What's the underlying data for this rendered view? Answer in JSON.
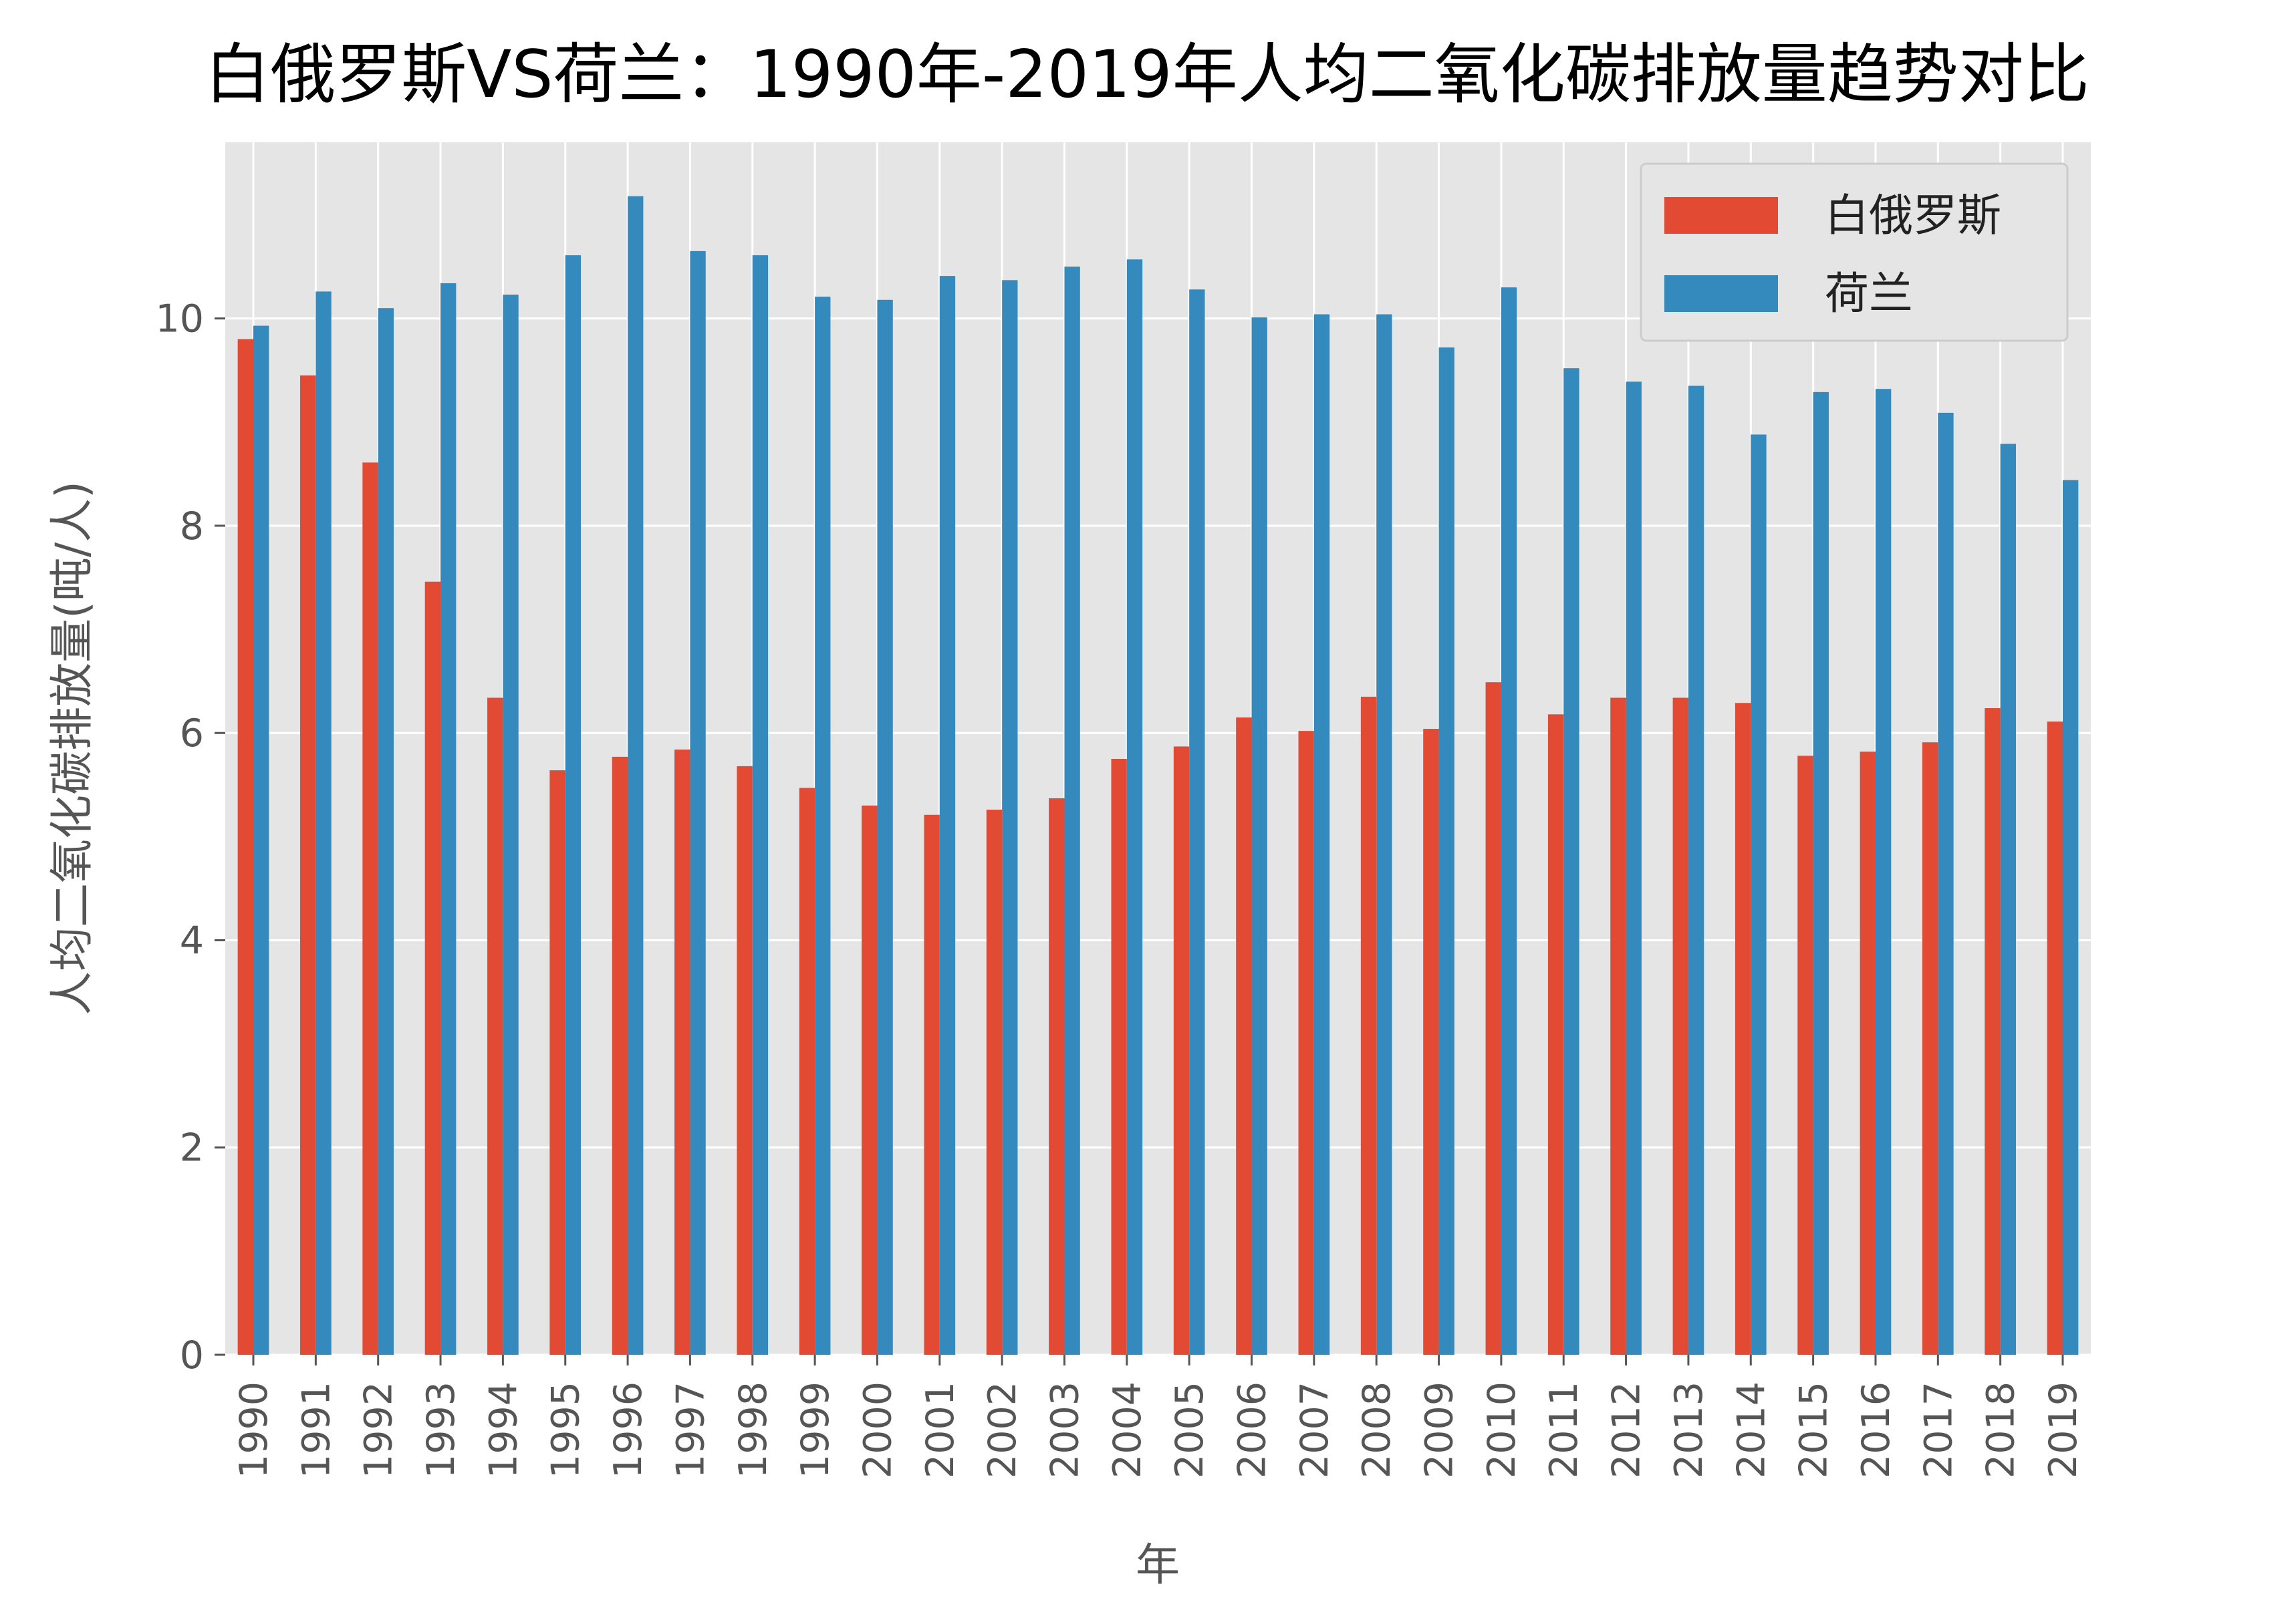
{
  "chart_data": {
    "type": "bar",
    "title": "白俄罗斯VS荷兰：1990年-2019年人均二氧化碳排放量趋势对比",
    "xlabel": "年",
    "ylabel": "人均二氧化碳排放量(吨/人)",
    "ylim": [
      0,
      11.7
    ],
    "yticks": [
      0,
      2,
      4,
      6,
      8,
      10
    ],
    "grid": true,
    "legend_position": "top-right",
    "categories": [
      "1990",
      "1991",
      "1992",
      "1993",
      "1994",
      "1995",
      "1996",
      "1997",
      "1998",
      "1999",
      "2000",
      "2001",
      "2002",
      "2003",
      "2004",
      "2005",
      "2006",
      "2007",
      "2008",
      "2009",
      "2010",
      "2011",
      "2012",
      "2013",
      "2014",
      "2015",
      "2016",
      "2017",
      "2018",
      "2019"
    ],
    "series": [
      {
        "name": "白俄罗斯",
        "color": "#E24A33",
        "values": [
          9.8,
          9.45,
          8.61,
          7.46,
          6.34,
          5.64,
          5.77,
          5.84,
          5.68,
          5.47,
          5.3,
          5.21,
          5.26,
          5.37,
          5.75,
          5.87,
          6.15,
          6.02,
          6.35,
          6.04,
          6.49,
          6.18,
          6.34,
          6.34,
          6.29,
          5.78,
          5.82,
          5.91,
          6.24,
          6.11
        ]
      },
      {
        "name": "荷兰",
        "color": "#348ABD",
        "values": [
          9.93,
          10.26,
          10.1,
          10.34,
          10.23,
          10.61,
          11.18,
          10.65,
          10.61,
          10.21,
          10.18,
          10.41,
          10.37,
          10.5,
          10.57,
          10.28,
          10.01,
          10.04,
          10.04,
          9.72,
          10.3,
          9.52,
          9.39,
          9.35,
          8.88,
          9.29,
          9.32,
          9.09,
          8.79,
          8.44
        ]
      }
    ]
  }
}
